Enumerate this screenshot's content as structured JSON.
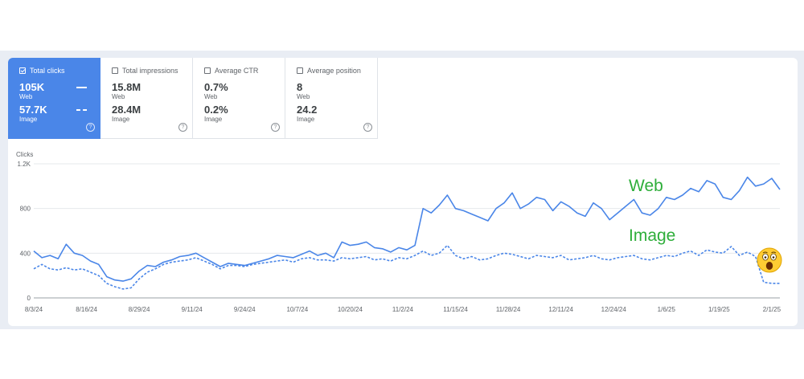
{
  "metrics": [
    {
      "label": "Total clicks",
      "selected": true,
      "web": "105K",
      "web_label": "Web",
      "image": "57.7K",
      "image_label": "Image"
    },
    {
      "label": "Total impressions",
      "selected": false,
      "web": "15.8M",
      "web_label": "Web",
      "image": "28.4M",
      "image_label": "Image"
    },
    {
      "label": "Average CTR",
      "selected": false,
      "web": "0.7%",
      "web_label": "Web",
      "image": "0.2%",
      "image_label": "Image"
    },
    {
      "label": "Average position",
      "selected": false,
      "web": "8",
      "web_label": "Web",
      "image": "24.2",
      "image_label": "Image"
    }
  ],
  "help_glyph": "?",
  "annotations": {
    "web": "Web",
    "image": "Image"
  },
  "chart_data": {
    "type": "line",
    "ylabel": "Clicks",
    "yticks": [
      0,
      400,
      800,
      1200
    ],
    "ytick_labels": [
      "0",
      "400",
      "800",
      "1.2K"
    ],
    "ylim": [
      0,
      1200
    ],
    "xlim": [
      "8/3/24",
      "2/3/25"
    ],
    "xtick_labels": [
      "8/3/24",
      "8/16/24",
      "8/29/24",
      "9/11/24",
      "9/24/24",
      "10/7/24",
      "10/20/24",
      "11/2/24",
      "11/15/24",
      "11/28/24",
      "12/11/24",
      "12/24/24",
      "1/6/25",
      "1/19/25",
      "2/1/25"
    ],
    "grid": true,
    "colors": {
      "web": "#4a86e8",
      "image": "#4a86e8"
    },
    "series": [
      {
        "name": "Web",
        "style": "solid",
        "x": [
          "8/3/24",
          "8/5/24",
          "8/7/24",
          "8/9/24",
          "8/11/24",
          "8/13/24",
          "8/15/24",
          "8/17/24",
          "8/19/24",
          "8/21/24",
          "8/23/24",
          "8/25/24",
          "8/27/24",
          "8/29/24",
          "8/31/24",
          "9/2/24",
          "9/4/24",
          "9/6/24",
          "9/8/24",
          "9/10/24",
          "9/12/24",
          "9/14/24",
          "9/16/24",
          "9/18/24",
          "9/20/24",
          "9/22/24",
          "9/24/24",
          "9/26/24",
          "9/28/24",
          "9/30/24",
          "10/2/24",
          "10/4/24",
          "10/6/24",
          "10/8/24",
          "10/10/24",
          "10/12/24",
          "10/14/24",
          "10/16/24",
          "10/18/24",
          "10/20/24",
          "10/22/24",
          "10/24/24",
          "10/26/24",
          "10/28/24",
          "10/30/24",
          "11/1/24",
          "11/3/24",
          "11/5/24",
          "11/7/24",
          "11/9/24",
          "11/11/24",
          "11/13/24",
          "11/15/24",
          "11/17/24",
          "11/19/24",
          "11/21/24",
          "11/23/24",
          "11/25/24",
          "11/27/24",
          "11/29/24",
          "12/1/24",
          "12/3/24",
          "12/5/24",
          "12/7/24",
          "12/9/24",
          "12/11/24",
          "12/13/24",
          "12/15/24",
          "12/17/24",
          "12/19/24",
          "12/21/24",
          "12/23/24",
          "12/25/24",
          "12/27/24",
          "12/29/24",
          "12/31/24",
          "1/2/25",
          "1/4/25",
          "1/6/25",
          "1/8/25",
          "1/10/25",
          "1/12/25",
          "1/14/25",
          "1/16/25",
          "1/18/25",
          "1/20/25",
          "1/22/25",
          "1/24/25",
          "1/26/25",
          "1/28/25",
          "1/30/25",
          "2/1/25",
          "2/3/25"
        ],
        "values": [
          420,
          360,
          380,
          350,
          480,
          400,
          380,
          330,
          300,
          190,
          160,
          150,
          170,
          240,
          290,
          280,
          320,
          340,
          370,
          380,
          400,
          360,
          320,
          280,
          310,
          300,
          290,
          310,
          330,
          350,
          380,
          370,
          360,
          390,
          420,
          380,
          400,
          360,
          500,
          470,
          480,
          500,
          450,
          440,
          410,
          450,
          430,
          470,
          800,
          760,
          830,
          920,
          800,
          780,
          750,
          720,
          690,
          800,
          850,
          940,
          800,
          840,
          900,
          880,
          780,
          860,
          820,
          760,
          730,
          850,
          800,
          700,
          760,
          820,
          880,
          760,
          740,
          800,
          900,
          880,
          920,
          980,
          950,
          1050,
          1020,
          900,
          880,
          960,
          1080,
          1000,
          1020,
          1070,
          970
        ]
      },
      {
        "name": "Image",
        "style": "dashed",
        "x": [
          "8/3/24",
          "8/5/24",
          "8/7/24",
          "8/9/24",
          "8/11/24",
          "8/13/24",
          "8/15/24",
          "8/17/24",
          "8/19/24",
          "8/21/24",
          "8/23/24",
          "8/25/24",
          "8/27/24",
          "8/29/24",
          "8/31/24",
          "9/2/24",
          "9/4/24",
          "9/6/24",
          "9/8/24",
          "9/10/24",
          "9/12/24",
          "9/14/24",
          "9/16/24",
          "9/18/24",
          "9/20/24",
          "9/22/24",
          "9/24/24",
          "9/26/24",
          "9/28/24",
          "9/30/24",
          "10/2/24",
          "10/4/24",
          "10/6/24",
          "10/8/24",
          "10/10/24",
          "10/12/24",
          "10/14/24",
          "10/16/24",
          "10/18/24",
          "10/20/24",
          "10/22/24",
          "10/24/24",
          "10/26/24",
          "10/28/24",
          "10/30/24",
          "11/1/24",
          "11/3/24",
          "11/5/24",
          "11/7/24",
          "11/9/24",
          "11/11/24",
          "11/13/24",
          "11/15/24",
          "11/17/24",
          "11/19/24",
          "11/21/24",
          "11/23/24",
          "11/25/24",
          "11/27/24",
          "11/29/24",
          "12/1/24",
          "12/3/24",
          "12/5/24",
          "12/7/24",
          "12/9/24",
          "12/11/24",
          "12/13/24",
          "12/15/24",
          "12/17/24",
          "12/19/24",
          "12/21/24",
          "12/23/24",
          "12/25/24",
          "12/27/24",
          "12/29/24",
          "12/31/24",
          "1/2/25",
          "1/4/25",
          "1/6/25",
          "1/8/25",
          "1/10/25",
          "1/12/25",
          "1/14/25",
          "1/16/25",
          "1/18/25",
          "1/20/25",
          "1/22/25",
          "1/24/25",
          "1/26/25",
          "1/28/25",
          "1/30/25",
          "2/1/25",
          "2/3/25"
        ],
        "values": [
          260,
          300,
          260,
          250,
          270,
          250,
          260,
          230,
          200,
          130,
          100,
          80,
          90,
          170,
          230,
          260,
          300,
          320,
          330,
          340,
          360,
          330,
          300,
          260,
          290,
          290,
          280,
          300,
          310,
          320,
          330,
          340,
          320,
          350,
          360,
          340,
          340,
          330,
          360,
          350,
          360,
          370,
          340,
          350,
          330,
          360,
          350,
          380,
          420,
          380,
          400,
          470,
          380,
          350,
          370,
          340,
          350,
          380,
          400,
          390,
          370,
          350,
          380,
          370,
          360,
          380,
          340,
          350,
          360,
          380,
          350,
          340,
          360,
          370,
          380,
          350,
          340,
          360,
          380,
          370,
          400,
          420,
          380,
          430,
          410,
          400,
          460,
          380,
          410,
          370,
          140,
          130,
          130
        ]
      }
    ]
  }
}
